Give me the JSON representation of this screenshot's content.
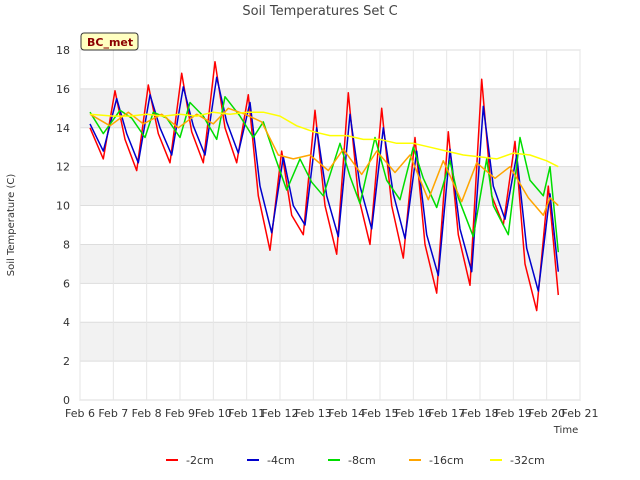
{
  "chart_data": {
    "type": "line",
    "title": "Soil Temperatures Set C",
    "xlabel": "Time",
    "ylabel": "Soil Temperature (C)",
    "station_badge": "BC_met",
    "xlim": [
      6,
      21
    ],
    "ylim": [
      0,
      18
    ],
    "x_ticks": [
      6,
      7,
      8,
      9,
      10,
      11,
      12,
      13,
      14,
      15,
      16,
      17,
      18,
      19,
      20,
      21
    ],
    "x_tick_labels": [
      "Feb 6",
      "Feb 7",
      "Feb 8",
      "Feb 9",
      "Feb 10",
      "Feb 11",
      "Feb 12",
      "Feb 13",
      "Feb 14",
      "Feb 15",
      "Feb 16",
      "Feb 17",
      "Feb 18",
      "Feb 19",
      "Feb 20",
      "Feb 21"
    ],
    "y_ticks": [
      0,
      2,
      4,
      6,
      8,
      10,
      12,
      14,
      16,
      18
    ],
    "y_tick_labels": [
      "0",
      "2",
      "4",
      "6",
      "8",
      "10",
      "12",
      "14",
      "16",
      "18"
    ],
    "x_unit_note": "x values are day-of-February",
    "series": [
      {
        "name": "-2cm",
        "color": "#ff0000",
        "x": [
          6.3,
          6.7,
          7.05,
          7.35,
          7.7,
          8.05,
          8.35,
          8.7,
          9.05,
          9.35,
          9.7,
          10.05,
          10.35,
          10.7,
          11.05,
          11.35,
          11.7,
          12.05,
          12.35,
          12.7,
          13.05,
          13.35,
          13.7,
          14.05,
          14.35,
          14.7,
          15.05,
          15.35,
          15.7,
          16.05,
          16.35,
          16.7,
          17.05,
          17.35,
          17.7,
          18.05,
          18.35,
          18.7,
          19.05,
          19.35,
          19.7,
          20.05,
          20.35
        ],
        "y": [
          14.0,
          12.4,
          15.9,
          13.4,
          11.8,
          16.2,
          13.7,
          12.2,
          16.8,
          13.8,
          12.2,
          17.4,
          14.0,
          12.2,
          15.7,
          10.5,
          7.7,
          12.8,
          9.5,
          8.5,
          14.9,
          10.0,
          7.5,
          15.8,
          10.5,
          8.0,
          15.0,
          10.0,
          7.3,
          13.5,
          8.0,
          5.5,
          13.8,
          8.5,
          5.9,
          16.5,
          10.5,
          9.0,
          13.3,
          7.0,
          4.6,
          11.0,
          5.4
        ]
      },
      {
        "name": "-4cm",
        "color": "#0000cc",
        "x": [
          6.3,
          6.7,
          7.1,
          7.4,
          7.75,
          8.1,
          8.4,
          8.75,
          9.1,
          9.4,
          9.75,
          10.1,
          10.4,
          10.75,
          11.1,
          11.4,
          11.75,
          12.1,
          12.4,
          12.75,
          13.1,
          13.4,
          13.75,
          14.1,
          14.4,
          14.75,
          15.1,
          15.4,
          15.75,
          16.1,
          16.4,
          16.75,
          17.1,
          17.4,
          17.75,
          18.1,
          18.4,
          18.75,
          19.1,
          19.4,
          19.75,
          20.1,
          20.35
        ],
        "y": [
          14.2,
          12.8,
          15.5,
          13.7,
          12.2,
          15.7,
          14.0,
          12.6,
          16.1,
          14.1,
          12.6,
          16.6,
          14.3,
          12.7,
          15.3,
          11.0,
          8.6,
          12.5,
          10.0,
          9.0,
          14.0,
          10.5,
          8.4,
          14.7,
          11.0,
          8.8,
          14.0,
          10.6,
          8.3,
          12.8,
          8.5,
          6.4,
          12.9,
          8.8,
          6.6,
          15.1,
          11.0,
          9.3,
          12.6,
          7.8,
          5.6,
          10.6,
          6.6
        ]
      },
      {
        "name": "-8cm",
        "color": "#00dd00",
        "x": [
          6.3,
          6.7,
          7.2,
          7.55,
          7.95,
          8.2,
          8.6,
          9.0,
          9.3,
          9.7,
          10.1,
          10.35,
          10.8,
          11.2,
          11.5,
          11.85,
          12.2,
          12.6,
          12.95,
          13.3,
          13.8,
          14.1,
          14.4,
          14.85,
          15.2,
          15.6,
          16.0,
          16.3,
          16.7,
          17.1,
          17.35,
          17.8,
          18.2,
          18.4,
          18.85,
          19.2,
          19.5,
          19.9,
          20.1,
          20.35
        ],
        "y": [
          14.8,
          13.7,
          14.9,
          14.5,
          13.5,
          14.8,
          14.5,
          13.5,
          15.3,
          14.6,
          13.4,
          15.6,
          14.6,
          13.5,
          14.3,
          12.5,
          10.8,
          12.4,
          11.2,
          10.5,
          13.2,
          11.5,
          10.1,
          13.5,
          11.3,
          10.3,
          13.0,
          11.4,
          9.9,
          12.3,
          10.4,
          8.4,
          12.4,
          10.0,
          8.5,
          13.5,
          11.3,
          10.5,
          12.0,
          7.6
        ]
      },
      {
        "name": "-16cm",
        "color": "#ffa500",
        "x": [
          6.3,
          6.9,
          7.45,
          7.9,
          8.45,
          8.95,
          9.5,
          10.0,
          10.45,
          10.95,
          11.45,
          11.95,
          12.4,
          12.9,
          13.45,
          13.9,
          14.45,
          14.9,
          15.45,
          15.9,
          16.45,
          16.9,
          17.45,
          17.9,
          18.45,
          18.9,
          19.45,
          19.9,
          20.1,
          20.35
        ],
        "y": [
          14.7,
          14.1,
          14.8,
          14.2,
          14.7,
          14.0,
          14.7,
          14.2,
          15.0,
          14.7,
          14.3,
          12.6,
          12.4,
          12.6,
          11.8,
          12.9,
          11.6,
          12.8,
          11.7,
          12.6,
          10.3,
          12.3,
          10.2,
          12.2,
          11.4,
          12.0,
          10.4,
          9.5,
          10.4,
          10.0
        ]
      },
      {
        "name": "-32cm",
        "color": "#ffff00",
        "x": [
          6.3,
          7.0,
          7.5,
          8.0,
          8.5,
          9.0,
          9.5,
          10.0,
          10.5,
          11.0,
          11.5,
          12.0,
          12.5,
          13.0,
          13.5,
          14.0,
          14.5,
          15.0,
          15.5,
          16.0,
          16.5,
          17.0,
          17.5,
          18.0,
          18.5,
          19.0,
          19.5,
          20.0,
          20.35
        ],
        "y": [
          14.7,
          14.6,
          14.6,
          14.7,
          14.6,
          14.7,
          14.6,
          14.8,
          14.7,
          14.8,
          14.8,
          14.6,
          14.1,
          13.8,
          13.6,
          13.6,
          13.4,
          13.4,
          13.2,
          13.2,
          13.0,
          12.8,
          12.6,
          12.5,
          12.4,
          12.7,
          12.6,
          12.3,
          12.0
        ]
      }
    ]
  }
}
